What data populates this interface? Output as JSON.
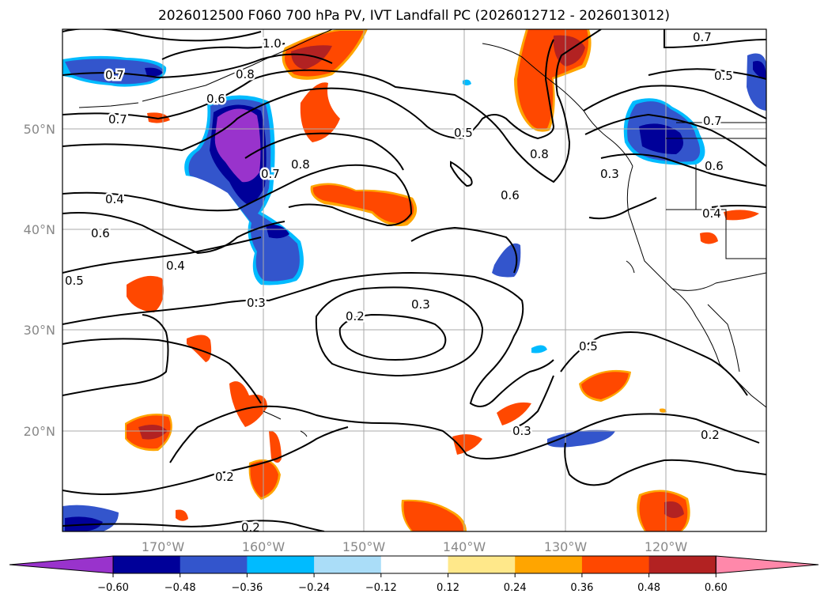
{
  "title": "2026012500 F060 700 hPa PV, IVT Landfall PC (2026012712 - 2026013012)",
  "map": {
    "projection": "PlateCarree",
    "lon_range": [
      -180,
      -110
    ],
    "lat_range": [
      10,
      60
    ],
    "lon_ticks": [
      "170°W",
      "160°W",
      "150°W",
      "140°W",
      "130°W",
      "120°W"
    ],
    "lat_ticks": [
      "50°N",
      "40°N",
      "30°N",
      "20°N"
    ],
    "gridlines": true
  },
  "contour_labels": [
    "1.0",
    "0.7",
    "0.8",
    "0.7",
    "0.5",
    "0.7",
    "0.6",
    "0.7",
    "0.8",
    "0.5",
    "0.8",
    "0.7",
    "0.3",
    "0.6",
    "0.4",
    "0.6",
    "0.6",
    "0.4",
    "0.5",
    "0.4",
    "0.3",
    "0.2",
    "0.3",
    "0.5",
    "0.3",
    "0.2",
    "0.2",
    "0.2",
    "0.8",
    "0.4",
    "0.7"
  ],
  "colorbar": {
    "ticks": [
      "−0.60",
      "−0.48",
      "−0.36",
      "−0.24",
      "−0.12",
      "0.12",
      "0.24",
      "0.36",
      "0.48",
      "0.60"
    ],
    "colors": [
      "#9933cc",
      "#000099",
      "#3355cc",
      "#00bbff",
      "#aaddf8",
      "#ffffff",
      "#ffe88a",
      "#ffa500",
      "#ff4800",
      "#b22222",
      "#ff88aa"
    ],
    "extend": "both"
  },
  "colors": {
    "neg_strong": "#9933cc",
    "neg_dark": "#000099",
    "neg_mid": "#3355cc",
    "neg_light": "#00bbff",
    "pos_light": "#ffe88a",
    "pos_mid": "#ffa500",
    "pos_strong": "#ff4800",
    "pos_dark": "#b22222",
    "coast": "#000000",
    "grid": "#aaaaaa"
  }
}
